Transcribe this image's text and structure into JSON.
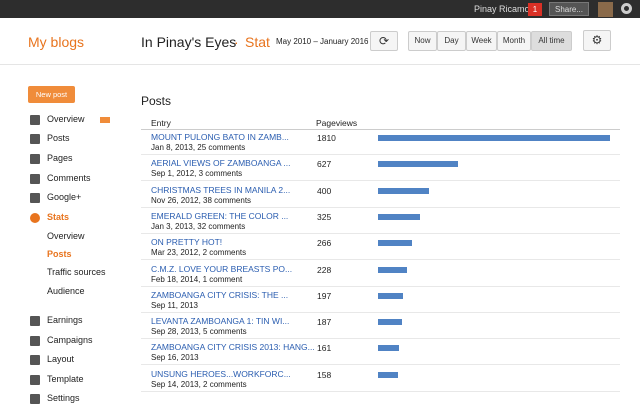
{
  "top_bar": {
    "user": "Pinay Ricamora",
    "notifications": "1",
    "share": "Share..."
  },
  "header": {
    "my_blogs": "My blogs",
    "blog_title": "In Pinay's Eyes",
    "separator": "·",
    "section": "Stat",
    "date_range": "May 2010 – January 2016",
    "ranges": [
      "Now",
      "Day",
      "Week",
      "Month",
      "All time"
    ]
  },
  "sidebar": {
    "new_post": "New post",
    "items": [
      "Overview",
      "Posts",
      "Pages",
      "Comments",
      "Google+",
      "Stats"
    ],
    "stats_subitems": [
      "Overview",
      "Posts",
      "Traffic sources",
      "Audience"
    ],
    "more_items": [
      "Earnings",
      "Campaigns",
      "Layout",
      "Template",
      "Settings"
    ]
  },
  "posts": {
    "title": "Posts",
    "columns": [
      "Entry",
      "Pageviews"
    ],
    "rows": [
      {
        "entry": "MOUNT PULONG BATO IN ZAMB...",
        "meta": "Jan 8, 2013, 25 comments",
        "pageviews": 1810
      },
      {
        "entry": "AERIAL VIEWS OF ZAMBOANGA ...",
        "meta": "Sep 1, 2012, 3 comments",
        "pageviews": 627
      },
      {
        "entry": "CHRISTMAS TREES IN MANILA 2...",
        "meta": "Nov 26, 2012, 38 comments",
        "pageviews": 400
      },
      {
        "entry": "EMERALD GREEN: THE COLOR ...",
        "meta": "Jan 3, 2013, 32 comments",
        "pageviews": 325
      },
      {
        "entry": "ON PRETTY HOT!",
        "meta": "Mar 23, 2012, 2 comments",
        "pageviews": 266
      },
      {
        "entry": "C.M.Z. LOVE YOUR BREASTS PO...",
        "meta": "Feb 18, 2014, 1 comment",
        "pageviews": 228
      },
      {
        "entry": "ZAMBOANGA CITY CRISIS: THE ...",
        "meta": "Sep 11, 2013",
        "pageviews": 197
      },
      {
        "entry": "LEVANTA ZAMBOANGA 1: TIN WI...",
        "meta": "Sep 28, 2013, 5 comments",
        "pageviews": 187
      },
      {
        "entry": "ZAMBOANGA CITY CRISIS 2013: HANG...",
        "meta": "Sep 16, 2013",
        "pageviews": 161
      },
      {
        "entry": "UNSUNG HEROES...WORKFORC...",
        "meta": "Sep 14, 2013, 2 comments",
        "pageviews": 158
      }
    ]
  }
}
